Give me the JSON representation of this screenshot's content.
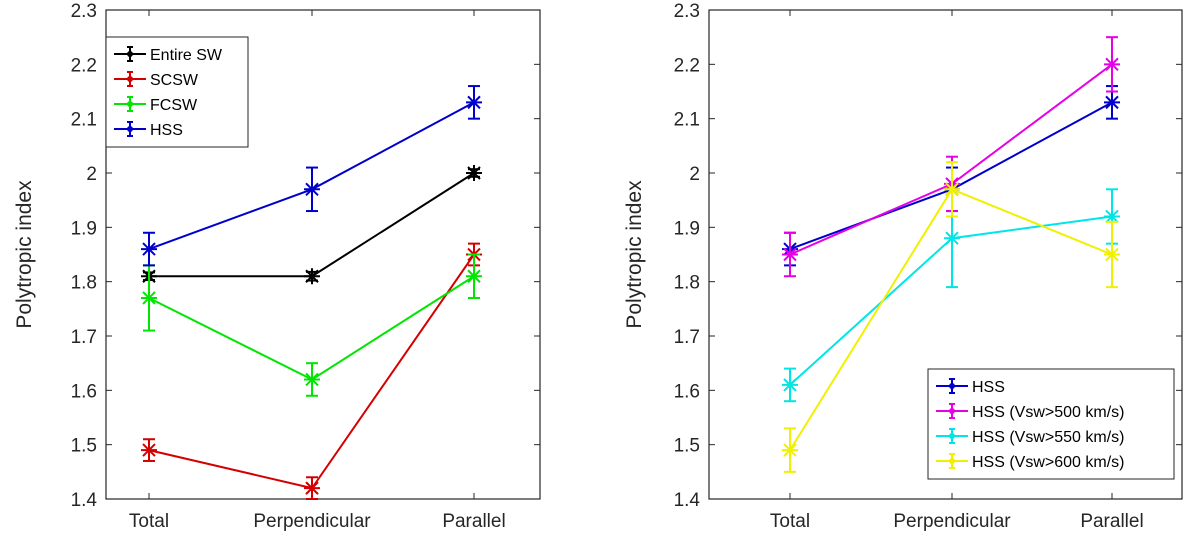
{
  "chart_data": [
    {
      "type": "line",
      "categories": [
        "Total",
        "Perpendicular",
        "Parallel"
      ],
      "ylabel": "Polytropic index",
      "xlabel": "",
      "ylim": [
        1.4,
        2.3
      ],
      "yticks": [
        1.4,
        1.5,
        1.6,
        1.7,
        1.8,
        1.9,
        2,
        2.1,
        2.2,
        2.3
      ],
      "ytick_labels": [
        "1.4",
        "1.5",
        "1.6",
        "1.7",
        "1.8",
        "1.9",
        "2",
        "2.1",
        "2.2",
        "2.3"
      ],
      "legend_position": "top-left",
      "grid": false,
      "series": [
        {
          "name": "Entire SW",
          "color": "#000000",
          "values": [
            1.81,
            1.81,
            2.0
          ],
          "errors": [
            0.007,
            0.008,
            0.007
          ]
        },
        {
          "name": "SCSW",
          "color": "#d40000",
          "values": [
            1.49,
            1.42,
            1.85
          ],
          "errors": [
            0.02,
            0.02,
            0.02
          ]
        },
        {
          "name": "FCSW",
          "color": "#00e600",
          "values": [
            1.77,
            1.62,
            1.81
          ],
          "errors": [
            0.06,
            0.03,
            0.04
          ]
        },
        {
          "name": "HSS",
          "color": "#0000cc",
          "values": [
            1.86,
            1.97,
            2.13
          ],
          "errors": [
            0.03,
            0.04,
            0.03
          ]
        }
      ]
    },
    {
      "type": "line",
      "categories": [
        "Total",
        "Perpendicular",
        "Parallel"
      ],
      "ylabel": "Polytropic index",
      "xlabel": "",
      "ylim": [
        1.4,
        2.3
      ],
      "yticks": [
        1.4,
        1.5,
        1.6,
        1.7,
        1.8,
        1.9,
        2,
        2.1,
        2.2,
        2.3
      ],
      "ytick_labels": [
        "1.4",
        "1.5",
        "1.6",
        "1.7",
        "1.8",
        "1.9",
        "2",
        "2.1",
        "2.2",
        "2.3"
      ],
      "legend_position": "bottom-right",
      "grid": false,
      "series": [
        {
          "name": "HSS",
          "color": "#0000cc",
          "values": [
            1.86,
            1.97,
            2.13
          ],
          "errors": [
            0.03,
            0.04,
            0.03
          ]
        },
        {
          "name": "HSS (Vsw>500 km/s)",
          "color": "#e600e6",
          "values": [
            1.85,
            1.98,
            2.2
          ],
          "errors": [
            0.04,
            0.05,
            0.05
          ]
        },
        {
          "name": "HSS (Vsw>550 km/s)",
          "color": "#00e6e6",
          "values": [
            1.61,
            1.88,
            1.92
          ],
          "errors": [
            0.03,
            0.09,
            0.05
          ]
        },
        {
          "name": "HSS (Vsw>600 km/s)",
          "color": "#f0f000",
          "values": [
            1.49,
            1.97,
            1.85
          ],
          "errors": [
            0.04,
            0.05,
            0.06
          ]
        }
      ]
    }
  ]
}
